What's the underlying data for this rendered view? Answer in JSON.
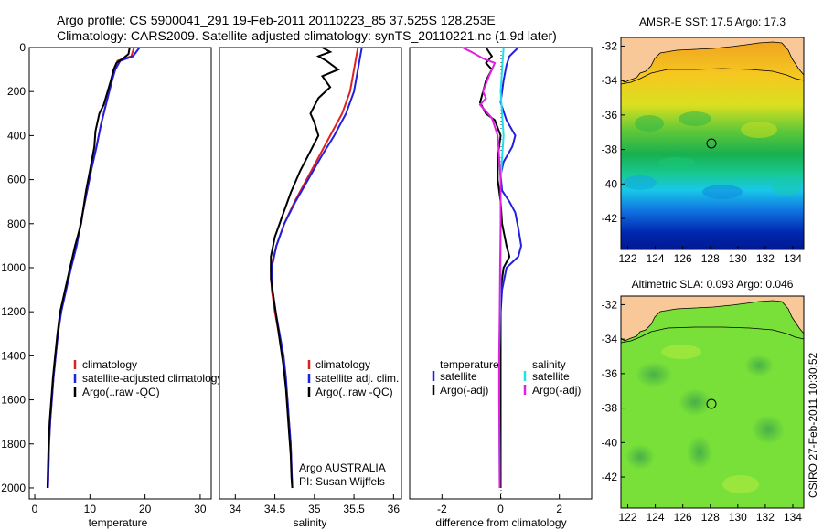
{
  "header": {
    "line1": "Argo profile: CS 5900041_291 19-Feb-2011 20110223_85 37.525S 128.253E",
    "line2": "Climatology: CARS2009. Satellite-adjusted climatology: synTS_20110221.nc (1.9d later)"
  },
  "colors": {
    "climatology": "#e02020",
    "satellite": "#2020e0",
    "argo": "#000000",
    "sal_satellite": "#20e0e8",
    "sal_argo": "#e020e0"
  },
  "chart_data": [
    {
      "type": "line",
      "title": "",
      "xlabel": "temperature",
      "ylabel": "",
      "xlim": [
        -1,
        32
      ],
      "ylim": [
        2050,
        0
      ],
      "xticks": [
        "0",
        "10",
        "20",
        "30"
      ],
      "yticks": [
        "0",
        "200",
        "400",
        "600",
        "800",
        "1000",
        "1200",
        "1400",
        "1600",
        "1800",
        "2000"
      ],
      "legend": {
        "placement": "lower-middle",
        "entries": [
          "climatology",
          "satellite-adjusted climatology",
          "Argo(..raw -QC)"
        ]
      },
      "series": [
        {
          "name": "climatology",
          "color": "#e02020",
          "points": [
            [
              18,
              0
            ],
            [
              17.5,
              40
            ],
            [
              15,
              60
            ],
            [
              14.5,
              100
            ],
            [
              14,
              150
            ],
            [
              13,
              250
            ],
            [
              12,
              350
            ],
            [
              11.2,
              450
            ],
            [
              10.3,
              550
            ],
            [
              9.5,
              650
            ],
            [
              8.7,
              750
            ],
            [
              7.5,
              900
            ],
            [
              6.5,
              1000
            ],
            [
              5.6,
              1100
            ],
            [
              4.7,
              1200
            ],
            [
              4.2,
              1300
            ],
            [
              3.8,
              1400
            ],
            [
              3.4,
              1500
            ],
            [
              3.1,
              1600
            ],
            [
              2.8,
              1700
            ],
            [
              2.6,
              1800
            ],
            [
              2.5,
              1900
            ],
            [
              2.4,
              2000
            ]
          ]
        },
        {
          "name": "satellite-adjusted climatology",
          "color": "#2020e0",
          "points": [
            [
              19,
              0
            ],
            [
              17.8,
              40
            ],
            [
              15.5,
              60
            ],
            [
              14.6,
              100
            ],
            [
              14,
              150
            ],
            [
              13,
              250
            ],
            [
              12,
              350
            ],
            [
              11.2,
              450
            ],
            [
              10.3,
              550
            ],
            [
              9.5,
              650
            ],
            [
              8.7,
              750
            ],
            [
              7.6,
              900
            ],
            [
              6.6,
              1000
            ],
            [
              5.7,
              1100
            ],
            [
              4.8,
              1200
            ],
            [
              4.2,
              1300
            ],
            [
              3.8,
              1400
            ],
            [
              3.4,
              1500
            ],
            [
              3.1,
              1600
            ],
            [
              2.8,
              1700
            ],
            [
              2.6,
              1800
            ],
            [
              2.5,
              1900
            ],
            [
              2.4,
              2000
            ]
          ]
        },
        {
          "name": "Argo(..raw -QC)",
          "color": "#000000",
          "points": [
            [
              17.2,
              0
            ],
            [
              17,
              30
            ],
            [
              16,
              50
            ],
            [
              14.8,
              70
            ],
            [
              14.3,
              100
            ],
            [
              13.8,
              150
            ],
            [
              12.5,
              260
            ],
            [
              11.7,
              300
            ],
            [
              11,
              380
            ],
            [
              10.8,
              450
            ],
            [
              10,
              560
            ],
            [
              9.3,
              650
            ],
            [
              8.4,
              800
            ],
            [
              7.3,
              900
            ],
            [
              6.4,
              1000
            ],
            [
              5.5,
              1100
            ],
            [
              4.6,
              1200
            ],
            [
              4.1,
              1300
            ],
            [
              3.7,
              1400
            ],
            [
              3.3,
              1500
            ],
            [
              3,
              1600
            ],
            [
              2.7,
              1700
            ],
            [
              2.5,
              1800
            ],
            [
              2.4,
              1900
            ],
            [
              2.3,
              2000
            ]
          ]
        }
      ]
    },
    {
      "type": "line",
      "title": "",
      "xlabel": "salinity",
      "ylabel": "",
      "xlim": [
        33.8,
        36.1
      ],
      "ylim": [
        2050,
        0
      ],
      "xticks": [
        "34",
        "34.5",
        "35",
        "35.5",
        "36"
      ],
      "legend": {
        "placement": "lower-right",
        "entries": [
          "climatology",
          "satellite adj. clim.",
          "Argo(..raw -QC)"
        ]
      },
      "annotation": [
        "Argo AUSTRALIA",
        "PI: Susan Wijffels"
      ],
      "series": [
        {
          "name": "climatology",
          "color": "#e02020",
          "points": [
            [
              35.55,
              0
            ],
            [
              35.5,
              100
            ],
            [
              35.45,
              200
            ],
            [
              35.35,
              300
            ],
            [
              35.2,
              400
            ],
            [
              35.05,
              500
            ],
            [
              34.9,
              600
            ],
            [
              34.75,
              700
            ],
            [
              34.62,
              800
            ],
            [
              34.52,
              900
            ],
            [
              34.45,
              1000
            ],
            [
              34.46,
              1100
            ],
            [
              34.5,
              1200
            ],
            [
              34.55,
              1300
            ],
            [
              34.6,
              1400
            ],
            [
              34.63,
              1500
            ],
            [
              34.66,
              1600
            ],
            [
              34.68,
              1700
            ],
            [
              34.7,
              1800
            ],
            [
              34.71,
              1900
            ],
            [
              34.72,
              2000
            ]
          ]
        },
        {
          "name": "satellite adj. clim.",
          "color": "#2020e0",
          "points": [
            [
              35.6,
              0
            ],
            [
              35.55,
              100
            ],
            [
              35.5,
              200
            ],
            [
              35.4,
              300
            ],
            [
              35.25,
              400
            ],
            [
              35.08,
              500
            ],
            [
              34.92,
              600
            ],
            [
              34.76,
              700
            ],
            [
              34.62,
              800
            ],
            [
              34.52,
              900
            ],
            [
              34.46,
              1000
            ],
            [
              34.47,
              1100
            ],
            [
              34.51,
              1200
            ],
            [
              34.56,
              1300
            ],
            [
              34.61,
              1400
            ],
            [
              34.64,
              1500
            ],
            [
              34.66,
              1600
            ],
            [
              34.68,
              1700
            ],
            [
              34.7,
              1800
            ],
            [
              34.71,
              1900
            ],
            [
              34.72,
              2000
            ]
          ]
        },
        {
          "name": "Argo(..raw -QC)",
          "color": "#000000",
          "points": [
            [
              35.1,
              0
            ],
            [
              35.2,
              20
            ],
            [
              35.05,
              40
            ],
            [
              35.15,
              60
            ],
            [
              35.3,
              100
            ],
            [
              35.1,
              130
            ],
            [
              35.2,
              180
            ],
            [
              35.05,
              230
            ],
            [
              34.95,
              300
            ],
            [
              35,
              340
            ],
            [
              35.05,
              400
            ],
            [
              34.95,
              470
            ],
            [
              34.82,
              560
            ],
            [
              34.7,
              660
            ],
            [
              34.6,
              760
            ],
            [
              34.5,
              860
            ],
            [
              34.45,
              950
            ],
            [
              34.45,
              1050
            ],
            [
              34.49,
              1150
            ],
            [
              34.53,
              1250
            ],
            [
              34.57,
              1350
            ],
            [
              34.61,
              1450
            ],
            [
              34.64,
              1550
            ],
            [
              34.66,
              1650
            ],
            [
              34.68,
              1750
            ],
            [
              34.7,
              1850
            ],
            [
              34.71,
              1950
            ],
            [
              34.72,
              2000
            ]
          ]
        }
      ]
    },
    {
      "type": "line",
      "title": "",
      "xlabel": "difference from climatology",
      "ylabel": "",
      "xlim": [
        -3.1,
        3.1
      ],
      "ylim": [
        2050,
        0
      ],
      "xticks": [
        "-2",
        "0",
        "2"
      ],
      "legend": {
        "placement": "lower",
        "groups": [
          {
            "title": "temperature",
            "entries": [
              "satellite",
              "Argo(-adj)"
            ]
          },
          {
            "title": "salinity",
            "entries": [
              "satellite",
              "Argo(-adj)"
            ]
          }
        ]
      },
      "series": [
        {
          "name": "temperature satellite",
          "color": "#2020e0",
          "points": [
            [
              0.6,
              0
            ],
            [
              0.3,
              40
            ],
            [
              0.2,
              80
            ],
            [
              0.1,
              150
            ],
            [
              0,
              250
            ],
            [
              0.2,
              330
            ],
            [
              0.5,
              400
            ],
            [
              0.4,
              450
            ],
            [
              0.1,
              520
            ],
            [
              0,
              580
            ],
            [
              0.05,
              650
            ],
            [
              0.3,
              700
            ],
            [
              0.5,
              750
            ],
            [
              0.6,
              820
            ],
            [
              0.7,
              900
            ],
            [
              0.6,
              950
            ],
            [
              0.2,
              1000
            ],
            [
              0.05,
              1100
            ],
            [
              0,
              1200
            ],
            [
              0,
              1400
            ],
            [
              0,
              1600
            ],
            [
              0,
              1800
            ],
            [
              0,
              2000
            ]
          ]
        },
        {
          "name": "temperature Argo(-adj)",
          "color": "#000000",
          "points": [
            [
              -0.5,
              0
            ],
            [
              -0.3,
              40
            ],
            [
              -0.5,
              70
            ],
            [
              -0.3,
              100
            ],
            [
              -0.5,
              150
            ],
            [
              -0.7,
              250
            ],
            [
              -0.5,
              300
            ],
            [
              -0.2,
              330
            ],
            [
              0,
              400
            ],
            [
              -0.1,
              500
            ],
            [
              -0.1,
              600
            ],
            [
              0,
              700
            ],
            [
              0.05,
              800
            ],
            [
              0.2,
              900
            ],
            [
              0.3,
              950
            ],
            [
              0.1,
              1000
            ],
            [
              0,
              1100
            ],
            [
              0,
              1300
            ],
            [
              0,
              1500
            ],
            [
              0,
              1700
            ],
            [
              0,
              1900
            ],
            [
              0,
              2000
            ]
          ]
        },
        {
          "name": "salinity satellite",
          "color": "#20e0e8",
          "points": [
            [
              0.1,
              0
            ],
            [
              0.05,
              100
            ],
            [
              0,
              200
            ],
            [
              0.05,
              300
            ],
            [
              0.1,
              400
            ],
            [
              0.05,
              500
            ],
            [
              0,
              600
            ],
            [
              0,
              800
            ],
            [
              0,
              1000
            ],
            [
              -0.02,
              1200
            ],
            [
              -0.05,
              1400
            ],
            [
              -0.05,
              1600
            ],
            [
              -0.04,
              1800
            ],
            [
              -0.03,
              2000
            ]
          ]
        },
        {
          "name": "salinity Argo(-adj)",
          "color": "#e020e0",
          "points": [
            [
              -1.3,
              0
            ],
            [
              -1,
              20
            ],
            [
              -0.6,
              50
            ],
            [
              -0.2,
              70
            ],
            [
              -0.4,
              130
            ],
            [
              -0.6,
              200
            ],
            [
              -0.5,
              230
            ],
            [
              -0.7,
              260
            ],
            [
              -0.5,
              290
            ],
            [
              -0.3,
              320
            ],
            [
              -0.1,
              400
            ],
            [
              -0.05,
              500
            ],
            [
              0,
              600
            ],
            [
              0,
              800
            ],
            [
              -0.02,
              1000
            ],
            [
              -0.03,
              1200
            ],
            [
              -0.05,
              1400
            ],
            [
              -0.05,
              1600
            ],
            [
              -0.04,
              1800
            ],
            [
              -0.03,
              2000
            ]
          ]
        }
      ]
    },
    {
      "type": "heatmap",
      "title": "AMSR-E SST: 17.5 Argo: 17.3",
      "xlim": [
        121.5,
        134.8
      ],
      "ylim": [
        -43.8,
        -31.5
      ],
      "xticks": [
        "122",
        "124",
        "126",
        "128",
        "130",
        "132",
        "134"
      ],
      "yticks": [
        "-32",
        "-34",
        "-36",
        "-38",
        "-40",
        "-42"
      ],
      "marker": [
        128.25,
        -37.5
      ]
    },
    {
      "type": "heatmap",
      "title": "Altimetric SLA: 0.093 Argo: 0.046",
      "xlim": [
        121.5,
        134.8
      ],
      "ylim": [
        -43.8,
        -31.5
      ],
      "xticks": [
        "122",
        "124",
        "126",
        "128",
        "130",
        "132",
        "134"
      ],
      "yticks": [
        "-32",
        "-34",
        "-36",
        "-38",
        "-40",
        "-42"
      ],
      "marker": [
        128.25,
        -37.5
      ]
    }
  ],
  "footer_stamp": "CSIRO 27-Feb-2011 10:30:52"
}
